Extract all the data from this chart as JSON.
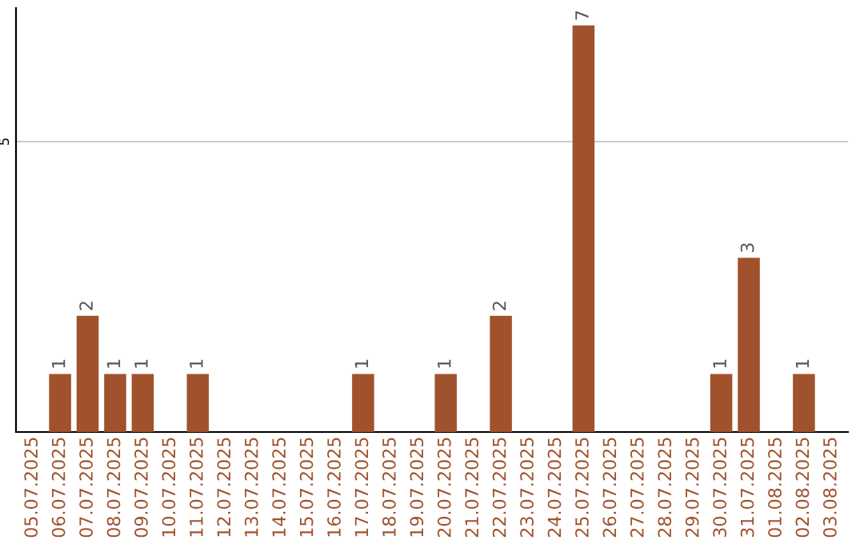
{
  "chart_data": {
    "type": "bar",
    "categories": [
      "05.07.2025",
      "06.07.2025",
      "07.07.2025",
      "08.07.2025",
      "09.07.2025",
      "10.07.2025",
      "11.07.2025",
      "12.07.2025",
      "13.07.2025",
      "14.07.2025",
      "15.07.2025",
      "16.07.2025",
      "17.07.2025",
      "18.07.2025",
      "19.07.2025",
      "20.07.2025",
      "21.07.2025",
      "22.07.2025",
      "23.07.2025",
      "24.07.2025",
      "25.07.2025",
      "26.07.2025",
      "27.07.2025",
      "28.07.2025",
      "29.07.2025",
      "30.07.2025",
      "31.07.2025",
      "01.08.2025",
      "02.08.2025",
      "03.08.2025"
    ],
    "values": [
      0,
      1,
      2,
      1,
      1,
      0,
      1,
      0,
      0,
      0,
      0,
      0,
      1,
      0,
      0,
      1,
      0,
      2,
      0,
      0,
      7,
      0,
      0,
      0,
      0,
      1,
      3,
      0,
      1,
      0
    ],
    "value_labels": [
      null,
      "1",
      "2",
      "1",
      "1",
      null,
      "1",
      null,
      null,
      null,
      null,
      null,
      "1",
      null,
      null,
      "1",
      null,
      "2",
      null,
      null,
      "7",
      null,
      null,
      null,
      null,
      "1",
      "3",
      null,
      "1",
      null
    ],
    "color": "#a0522d",
    "ylim": [
      0,
      7.3
    ],
    "yticks": [
      5
    ],
    "grid": "y"
  }
}
